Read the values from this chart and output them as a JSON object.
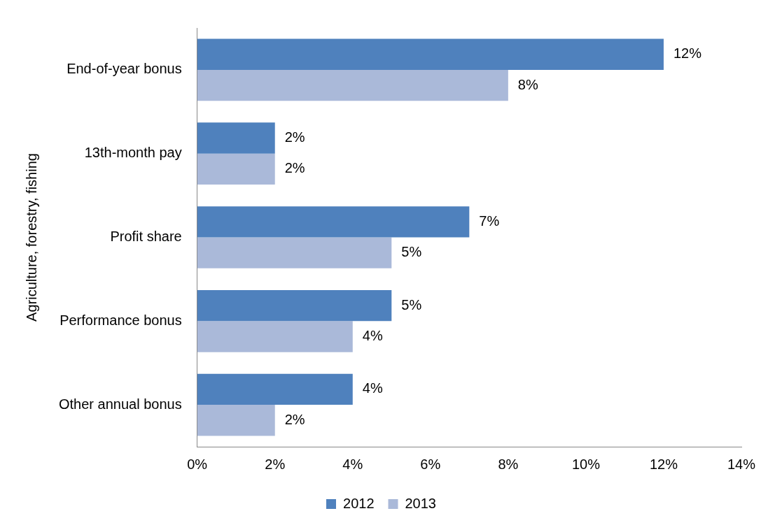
{
  "chart_data": {
    "type": "bar",
    "orientation": "horizontal",
    "ylabel": "Agriculture, forestry, fishing",
    "categories": [
      "End-of-year bonus",
      "13th-month pay",
      "Profit share",
      "Performance bonus",
      "Other annual bonus"
    ],
    "series": [
      {
        "name": "2012",
        "color": "#4f81bd",
        "values": [
          12,
          2,
          7,
          5,
          4
        ],
        "value_labels": [
          "12%",
          "2%",
          "7%",
          "5%",
          "4%"
        ]
      },
      {
        "name": "2013",
        "color": "#aab9d9",
        "values": [
          8,
          2,
          5,
          4,
          2
        ],
        "value_labels": [
          "8%",
          "2%",
          "5%",
          "4%",
          "2%"
        ]
      }
    ],
    "xlim": [
      0,
      14
    ],
    "xticks": [
      {
        "value": 0,
        "label": "0%"
      },
      {
        "value": 2,
        "label": "2%"
      },
      {
        "value": 4,
        "label": "4%"
      },
      {
        "value": 6,
        "label": "6%"
      },
      {
        "value": 8,
        "label": "8%"
      },
      {
        "value": 10,
        "label": "10%"
      },
      {
        "value": 12,
        "label": "12%"
      },
      {
        "value": 14,
        "label": "14%"
      }
    ],
    "grid": false,
    "legend": "bottom"
  }
}
